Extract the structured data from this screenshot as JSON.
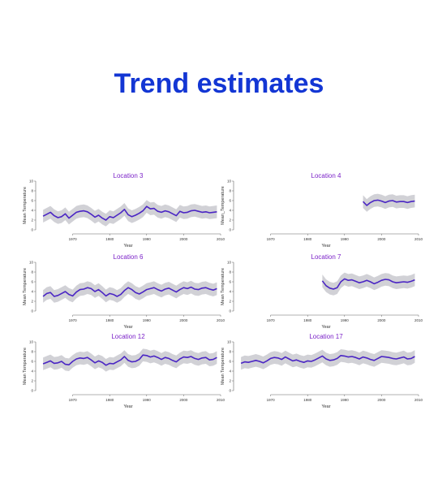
{
  "slide": {
    "title": "Trend estimates"
  },
  "colors": {
    "title": "#1336d4",
    "panel_title": "#7b22c8",
    "line": "#4a25c4",
    "band": "#c9c9cf"
  },
  "chart_data": [
    {
      "type": "line",
      "title": "Location 3",
      "xlabel": "Year",
      "ylabel": "Mean Temperature",
      "xlim": [
        1960,
        2010
      ],
      "ylim": [
        0,
        10
      ],
      "xticks": [
        1970,
        1980,
        1990,
        2000,
        2010
      ],
      "yticks": [
        0,
        2,
        4,
        6,
        8,
        10
      ],
      "x": [
        1962,
        1963,
        1964,
        1965,
        1966,
        1967,
        1968,
        1969,
        1970,
        1971,
        1972,
        1973,
        1974,
        1975,
        1976,
        1977,
        1978,
        1979,
        1980,
        1981,
        1982,
        1983,
        1984,
        1985,
        1986,
        1987,
        1988,
        1989,
        1990,
        1991,
        1992,
        1993,
        1994,
        1995,
        1996,
        1997,
        1998,
        1999,
        2000,
        2001,
        2002,
        2003,
        2004,
        2005,
        2006,
        2007,
        2008,
        2009
      ],
      "series": [
        {
          "values": [
            2.8,
            3.2,
            3.6,
            2.9,
            2.5,
            2.7,
            3.3,
            2.4,
            3.0,
            3.6,
            3.8,
            3.9,
            3.7,
            3.2,
            2.6,
            3.0,
            2.4,
            2.0,
            2.7,
            2.5,
            3.0,
            3.5,
            4.2,
            3.1,
            2.7,
            3.0,
            3.4,
            3.9,
            4.8,
            4.3,
            4.4,
            3.8,
            3.6,
            3.9,
            3.7,
            3.3,
            2.9,
            3.8,
            3.5,
            3.6,
            3.9,
            4.0,
            3.8,
            3.6,
            3.7,
            3.5,
            3.6,
            3.7
          ]
        }
      ]
    },
    {
      "type": "line",
      "title": "Location 4",
      "xlabel": "Year",
      "ylabel": "Mean_Temperature",
      "xlim": [
        1960,
        2010
      ],
      "ylim": [
        0,
        10
      ],
      "xticks": [
        1970,
        1980,
        1990,
        2000,
        2010
      ],
      "yticks": [
        0,
        2,
        4,
        6,
        8,
        10
      ],
      "x": [
        1995,
        1996,
        1997,
        1998,
        1999,
        2000,
        2001,
        2002,
        2003,
        2004,
        2005,
        2006,
        2007,
        2008,
        2009
      ],
      "series": [
        {
          "values": [
            5.8,
            5.0,
            5.6,
            6.0,
            6.1,
            5.9,
            5.6,
            5.9,
            6.0,
            5.7,
            5.8,
            5.8,
            5.6,
            5.8,
            5.9
          ]
        }
      ]
    },
    {
      "type": "line",
      "title": "Location 6",
      "xlabel": "Year",
      "ylabel": "Mean Temperature",
      "xlim": [
        1960,
        2010
      ],
      "ylim": [
        0,
        10
      ],
      "xticks": [
        1970,
        1980,
        1990,
        2000,
        2010
      ],
      "yticks": [
        0,
        2,
        4,
        6,
        8,
        10
      ],
      "x": [
        1962,
        1963,
        1964,
        1965,
        1966,
        1967,
        1968,
        1969,
        1970,
        1971,
        1972,
        1973,
        1974,
        1975,
        1976,
        1977,
        1978,
        1979,
        1980,
        1981,
        1982,
        1983,
        1984,
        1985,
        1986,
        1987,
        1988,
        1989,
        1990,
        1991,
        1992,
        1993,
        1994,
        1995,
        1996,
        1997,
        1998,
        1999,
        2000,
        2001,
        2002,
        2003,
        2004,
        2005,
        2006,
        2007,
        2008,
        2009
      ],
      "series": [
        {
          "values": [
            3.0,
            3.6,
            3.8,
            3.0,
            3.2,
            3.6,
            4.0,
            3.4,
            3.1,
            3.9,
            4.4,
            4.5,
            4.8,
            4.6,
            4.0,
            4.4,
            3.8,
            3.1,
            3.6,
            3.4,
            3.0,
            3.4,
            4.2,
            4.8,
            4.4,
            3.8,
            3.5,
            3.9,
            4.4,
            4.6,
            4.8,
            4.4,
            4.1,
            4.5,
            4.7,
            4.3,
            3.9,
            4.4,
            4.8,
            4.6,
            4.9,
            4.5,
            4.4,
            4.7,
            4.8,
            4.5,
            4.3,
            4.6
          ]
        }
      ]
    },
    {
      "type": "line",
      "title": "Location 7",
      "xlabel": "Year",
      "ylabel": "Mean Temperature",
      "xlim": [
        1960,
        2010
      ],
      "ylim": [
        0,
        10
      ],
      "xticks": [
        1970,
        1980,
        1990,
        2000,
        2010
      ],
      "yticks": [
        0,
        2,
        4,
        6,
        8,
        10
      ],
      "x": [
        1984,
        1985,
        1986,
        1987,
        1988,
        1989,
        1990,
        1991,
        1992,
        1993,
        1994,
        1995,
        1996,
        1997,
        1998,
        1999,
        2000,
        2001,
        2002,
        2003,
        2004,
        2005,
        2006,
        2007,
        2008,
        2009
      ],
      "series": [
        {
          "values": [
            6.2,
            5.2,
            4.7,
            4.5,
            4.8,
            6.0,
            6.6,
            6.3,
            6.4,
            6.1,
            5.8,
            6.0,
            6.3,
            6.0,
            5.6,
            5.9,
            6.3,
            6.5,
            6.4,
            6.0,
            5.8,
            5.9,
            6.0,
            5.9,
            6.1,
            6.4
          ]
        }
      ]
    },
    {
      "type": "line",
      "title": "Location 12",
      "xlabel": "Year",
      "ylabel": "Mean Temperature",
      "xlim": [
        1960,
        2010
      ],
      "ylim": [
        0,
        10
      ],
      "xticks": [
        1970,
        1980,
        1990,
        2000,
        2010
      ],
      "yticks": [
        0,
        2,
        4,
        6,
        8,
        10
      ],
      "x": [
        1962,
        1963,
        1964,
        1965,
        1966,
        1967,
        1968,
        1969,
        1970,
        1971,
        1972,
        1973,
        1974,
        1975,
        1976,
        1977,
        1978,
        1979,
        1980,
        1981,
        1982,
        1983,
        1984,
        1985,
        1986,
        1987,
        1988,
        1989,
        1990,
        1991,
        1992,
        1993,
        1994,
        1995,
        1996,
        1997,
        1998,
        1999,
        2000,
        2001,
        2002,
        2003,
        2004,
        2005,
        2006,
        2007,
        2008,
        2009
      ],
      "series": [
        {
          "values": [
            5.5,
            5.8,
            6.1,
            5.6,
            5.7,
            6.0,
            5.4,
            5.3,
            6.0,
            6.5,
            6.7,
            6.6,
            6.8,
            6.3,
            5.7,
            6.1,
            5.8,
            5.2,
            5.6,
            5.5,
            5.9,
            6.3,
            7.0,
            6.2,
            5.9,
            6.0,
            6.4,
            7.3,
            7.2,
            6.9,
            7.1,
            6.8,
            6.4,
            6.8,
            6.6,
            6.2,
            5.9,
            6.5,
            6.9,
            6.8,
            7.0,
            6.6,
            6.4,
            6.7,
            6.8,
            6.3,
            6.4,
            6.8
          ]
        }
      ]
    },
    {
      "type": "line",
      "title": "Location 17",
      "xlabel": "Year",
      "ylabel": "Mean Temperature",
      "xlim": [
        1960,
        2010
      ],
      "ylim": [
        0,
        10
      ],
      "xticks": [
        1970,
        1980,
        1990,
        2000,
        2010
      ],
      "yticks": [
        0,
        2,
        4,
        6,
        8,
        10
      ],
      "x": [
        1962,
        1963,
        1964,
        1965,
        1966,
        1967,
        1968,
        1969,
        1970,
        1971,
        1972,
        1973,
        1974,
        1975,
        1976,
        1977,
        1978,
        1979,
        1980,
        1981,
        1982,
        1983,
        1984,
        1985,
        1986,
        1987,
        1988,
        1989,
        1990,
        1991,
        1992,
        1993,
        1994,
        1995,
        1996,
        1997,
        1998,
        1999,
        2000,
        2001,
        2002,
        2003,
        2004,
        2005,
        2006,
        2007,
        2008,
        2009
      ],
      "series": [
        {
          "values": [
            5.6,
            5.9,
            5.8,
            6.0,
            6.2,
            6.0,
            5.7,
            6.1,
            6.6,
            6.8,
            6.7,
            6.4,
            6.9,
            6.5,
            6.1,
            6.3,
            6.0,
            5.8,
            6.1,
            6.0,
            6.3,
            6.7,
            7.1,
            6.5,
            6.2,
            6.3,
            6.6,
            7.2,
            7.1,
            6.9,
            7.0,
            6.8,
            6.5,
            6.9,
            6.7,
            6.4,
            6.2,
            6.6,
            7.0,
            6.9,
            6.8,
            6.6,
            6.5,
            6.7,
            6.9,
            6.5,
            6.6,
            7.0
          ]
        }
      ]
    }
  ]
}
